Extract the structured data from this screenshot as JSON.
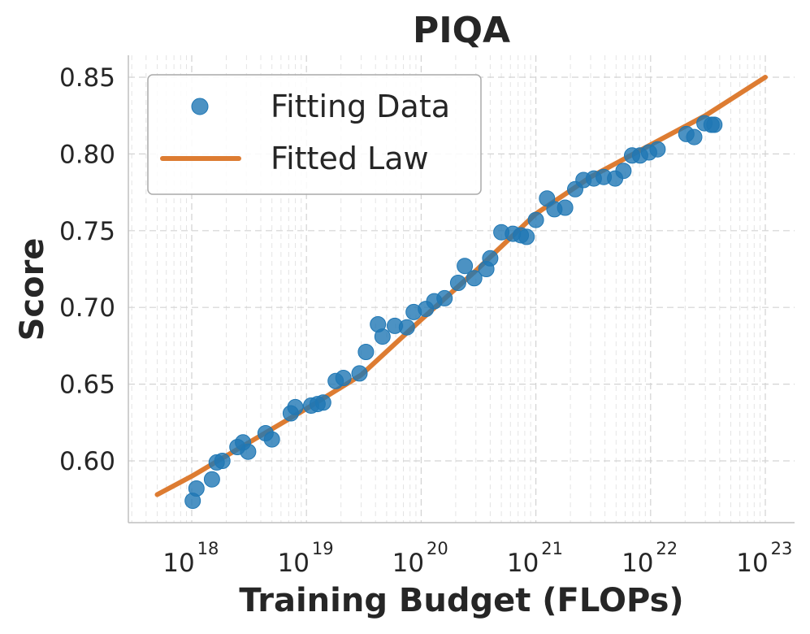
{
  "chart_data": {
    "type": "scatter",
    "title": "PIQA",
    "xlabel": "Training Budget (FLOPs)",
    "ylabel": "Score",
    "xscale": "log",
    "xlim": [
      3e+17,
      2e+23
    ],
    "ylim": [
      0.56,
      0.865
    ],
    "grid": true,
    "legend_position": "top-left",
    "colors": {
      "points": "#1f77b4",
      "line": "#dd7c32",
      "text": "#262626",
      "grid": "#d9d9d9",
      "spine": "#bfbfbf"
    },
    "yticks": [
      {
        "value": 0.6,
        "label": "0.60"
      },
      {
        "value": 0.65,
        "label": "0.65"
      },
      {
        "value": 0.7,
        "label": "0.70"
      },
      {
        "value": 0.75,
        "label": "0.75"
      },
      {
        "value": 0.8,
        "label": "0.80"
      },
      {
        "value": 0.85,
        "label": "0.85"
      }
    ],
    "xticks": [
      {
        "value": 1e+18,
        "base": "10",
        "exp": "18"
      },
      {
        "value": 1e+19,
        "base": "10",
        "exp": "19"
      },
      {
        "value": 1e+20,
        "base": "10",
        "exp": "20"
      },
      {
        "value": 1e+21,
        "base": "10",
        "exp": "21"
      },
      {
        "value": 1e+22,
        "base": "10",
        "exp": "22"
      },
      {
        "value": 1e+23,
        "base": "10",
        "exp": "23"
      }
    ],
    "series": [
      {
        "name": "Fitting Data",
        "kind": "scatter",
        "points": [
          [
            1.02e+18,
            0.574
          ],
          [
            1.1e+18,
            0.582
          ],
          [
            1.5e+18,
            0.588
          ],
          [
            1.65e+18,
            0.599
          ],
          [
            1.85e+18,
            0.6
          ],
          [
            2.5e+18,
            0.609
          ],
          [
            2.8e+18,
            0.612
          ],
          [
            3.1e+18,
            0.606
          ],
          [
            4.4e+18,
            0.618
          ],
          [
            5e+18,
            0.614
          ],
          [
            7.3e+18,
            0.631
          ],
          [
            8e+18,
            0.635
          ],
          [
            1.1e+19,
            0.636
          ],
          [
            1.25e+19,
            0.637
          ],
          [
            1.4e+19,
            0.638
          ],
          [
            1.8e+19,
            0.652
          ],
          [
            2.1e+19,
            0.654
          ],
          [
            2.9e+19,
            0.657
          ],
          [
            3.3e+19,
            0.671
          ],
          [
            4.2e+19,
            0.689
          ],
          [
            4.6e+19,
            0.681
          ],
          [
            5.9e+19,
            0.688
          ],
          [
            7.5e+19,
            0.687
          ],
          [
            8.6e+19,
            0.697
          ],
          [
            1.1e+20,
            0.699
          ],
          [
            1.3e+20,
            0.704
          ],
          [
            1.6e+20,
            0.706
          ],
          [
            2.1e+20,
            0.716
          ],
          [
            2.4e+20,
            0.727
          ],
          [
            2.9e+20,
            0.719
          ],
          [
            3.7e+20,
            0.725
          ],
          [
            4e+20,
            0.732
          ],
          [
            5e+20,
            0.749
          ],
          [
            6.3e+20,
            0.748
          ],
          [
            7.4e+20,
            0.747
          ],
          [
            8.3e+20,
            0.746
          ],
          [
            1e+21,
            0.757
          ],
          [
            1.25e+21,
            0.771
          ],
          [
            1.45e+21,
            0.764
          ],
          [
            1.8e+21,
            0.765
          ],
          [
            2.2e+21,
            0.777
          ],
          [
            2.6e+21,
            0.783
          ],
          [
            3.2e+21,
            0.784
          ],
          [
            3.9e+21,
            0.785
          ],
          [
            4.9e+21,
            0.784
          ],
          [
            5.8e+21,
            0.789
          ],
          [
            6.9e+21,
            0.799
          ],
          [
            8.1e+21,
            0.799
          ],
          [
            9.7e+21,
            0.801
          ],
          [
            1.15e+22,
            0.803
          ],
          [
            2.05e+22,
            0.813
          ],
          [
            2.4e+22,
            0.811
          ],
          [
            2.95e+22,
            0.82
          ],
          [
            3.4e+22,
            0.819
          ],
          [
            3.6e+22,
            0.819
          ]
        ]
      },
      {
        "name": "Fitted Law",
        "kind": "line",
        "points": [
          [
            5e+17,
            0.578
          ],
          [
            1e+18,
            0.59
          ],
          [
            3e+18,
            0.611
          ],
          [
            1e+19,
            0.634
          ],
          [
            3e+19,
            0.656
          ],
          [
            1e+20,
            0.692
          ],
          [
            3e+20,
            0.724
          ],
          [
            1e+21,
            0.761
          ],
          [
            3e+21,
            0.785
          ],
          [
            1e+22,
            0.806
          ],
          [
            3e+22,
            0.825
          ],
          [
            1e+23,
            0.85
          ]
        ]
      }
    ]
  }
}
